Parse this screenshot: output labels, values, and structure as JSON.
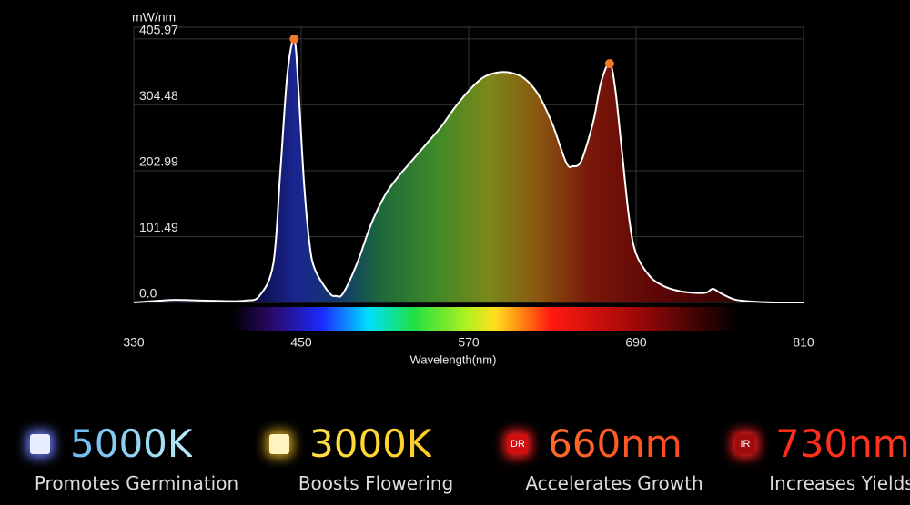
{
  "chart_data": {
    "type": "line",
    "y_label": "mW/nm",
    "x_label": "Wavelength(nm)",
    "x": [
      330,
      350,
      360,
      380,
      400,
      410,
      420,
      430,
      435,
      440,
      445,
      448,
      452,
      456,
      460,
      470,
      475,
      480,
      490,
      500,
      510,
      520,
      530,
      540,
      550,
      560,
      570,
      580,
      590,
      600,
      610,
      620,
      630,
      640,
      645,
      650,
      655,
      660,
      665,
      671,
      675,
      680,
      685,
      690,
      700,
      710,
      720,
      730,
      740,
      745,
      750,
      760,
      770,
      790,
      810
    ],
    "values": [
      0,
      3,
      4,
      3,
      2,
      3,
      10,
      60,
      200,
      350,
      405.97,
      330,
      185,
      90,
      50,
      15,
      10,
      14,
      60,
      120,
      165,
      195,
      220,
      245,
      270,
      300,
      326,
      346,
      354,
      354,
      345,
      320,
      275,
      215,
      210,
      215,
      245,
      285,
      340,
      368,
      330,
      230,
      130,
      75,
      40,
      25,
      18,
      15,
      15,
      21,
      15,
      5,
      2,
      0,
      0
    ],
    "color": "#ffffff",
    "marker_color": "#f07a2a",
    "xlim": [
      330,
      810
    ],
    "xticks": [
      330,
      450,
      570,
      690,
      810
    ],
    "ylim": [
      0,
      424
    ],
    "yticks": [
      {
        "value": 0,
        "label": "0.0"
      },
      101.49,
      202.99,
      304.48,
      405.97
    ],
    "grid": true
  },
  "features": [
    {
      "icon": null,
      "title": "5000K",
      "desc": "Promotes Germination"
    },
    {
      "icon": null,
      "title": "3000K",
      "desc": "Boosts Flowering"
    },
    {
      "icon": "DR",
      "title": "660nm",
      "desc": "Accelerates Growth"
    },
    {
      "icon": "IR",
      "title": "730nm",
      "desc": "Increases Yields"
    }
  ]
}
